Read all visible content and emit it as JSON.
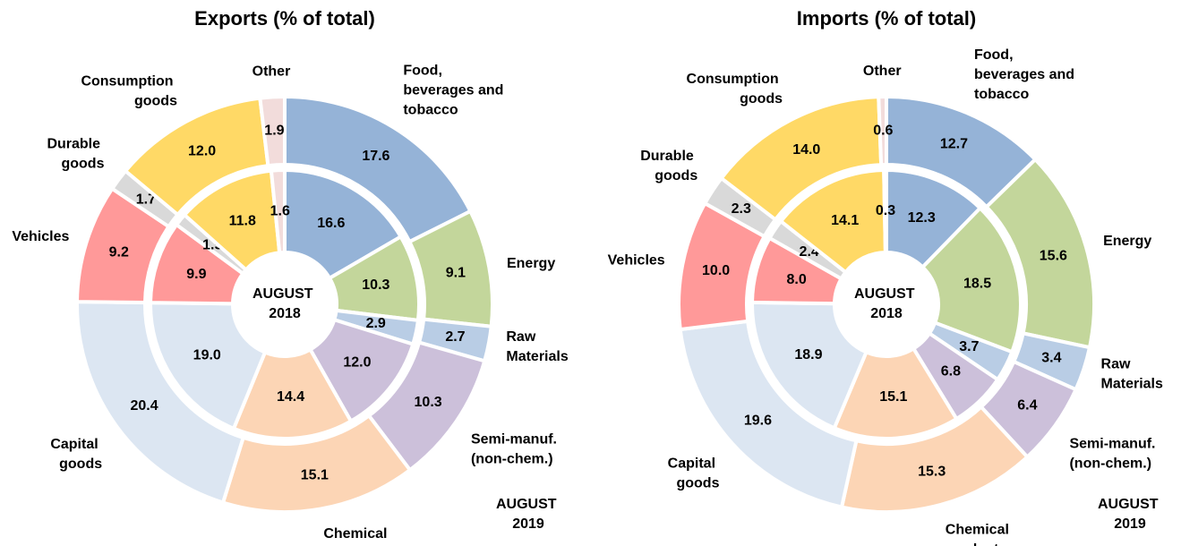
{
  "chart_data": [
    {
      "type": "donut",
      "title": "Exports (% of total)",
      "categories": [
        "Food, beverages and tobacco",
        "Energy",
        "Raw Materials",
        "Semi-manuf. (non-chem.)",
        "Chemical products",
        "Capital goods",
        "Vehicles",
        "Durable goods",
        "Consumption goods",
        "Other"
      ],
      "colors": [
        "#95b3d7",
        "#c3d69b",
        "#b9cde5",
        "#ccc0da",
        "#fcd5b5",
        "#dce6f2",
        "#ff9999",
        "#d9d9d9",
        "#ffd966",
        "#f2dcdb"
      ],
      "series": [
        {
          "name": "AUGUST 2018",
          "values": [
            16.6,
            10.3,
            2.9,
            12.0,
            14.4,
            19.0,
            9.9,
            1.5,
            11.8,
            1.6
          ],
          "value_labels": [
            "16.6",
            "10.3",
            "2.9",
            "12.0",
            "14.4",
            "19.0",
            "9.9",
            "1.5",
            "11.8",
            "1.6"
          ]
        },
        {
          "name": "AUGUST 2019",
          "values": [
            17.6,
            9.1,
            2.7,
            10.3,
            15.1,
            20.4,
            9.2,
            1.7,
            12.0,
            1.9
          ],
          "value_labels": [
            "17.6",
            "9.1",
            "2.7",
            "10.3",
            "15.1",
            "20.4",
            "9.2",
            "1.7",
            "12.0",
            "1.9"
          ]
        }
      ]
    },
    {
      "type": "donut",
      "title": "Imports (% of total)",
      "categories": [
        "Food, beverages and tobacco",
        "Energy",
        "Raw Materials",
        "Semi-manuf. (non-chem.)",
        "Chemical products",
        "Capital goods",
        "Vehicles",
        "Durable goods",
        "Consumption goods",
        "Other"
      ],
      "colors": [
        "#95b3d7",
        "#c3d69b",
        "#b9cde5",
        "#ccc0da",
        "#fcd5b5",
        "#dce6f2",
        "#ff9999",
        "#d9d9d9",
        "#ffd966",
        "#f2dcdb"
      ],
      "series": [
        {
          "name": "AUGUST 2018",
          "values": [
            12.3,
            18.5,
            3.7,
            6.8,
            15.1,
            18.9,
            8.0,
            2.4,
            14.1,
            0.3
          ],
          "value_labels": [
            "12.3",
            "18.5",
            "3.7",
            "6.8",
            "15.1",
            "18.9",
            "8.0",
            "2.4",
            "14.1",
            "0.3"
          ]
        },
        {
          "name": "AUGUST 2019",
          "values": [
            12.7,
            15.6,
            3.4,
            6.4,
            15.3,
            19.6,
            10.0,
            2.3,
            14.0,
            0.6
          ],
          "value_labels": [
            "12.7",
            "15.6",
            "3.4",
            "6.4",
            "15.3",
            "19.6",
            "10.0",
            "2.3",
            "14.0",
            "0.6"
          ]
        }
      ]
    }
  ]
}
